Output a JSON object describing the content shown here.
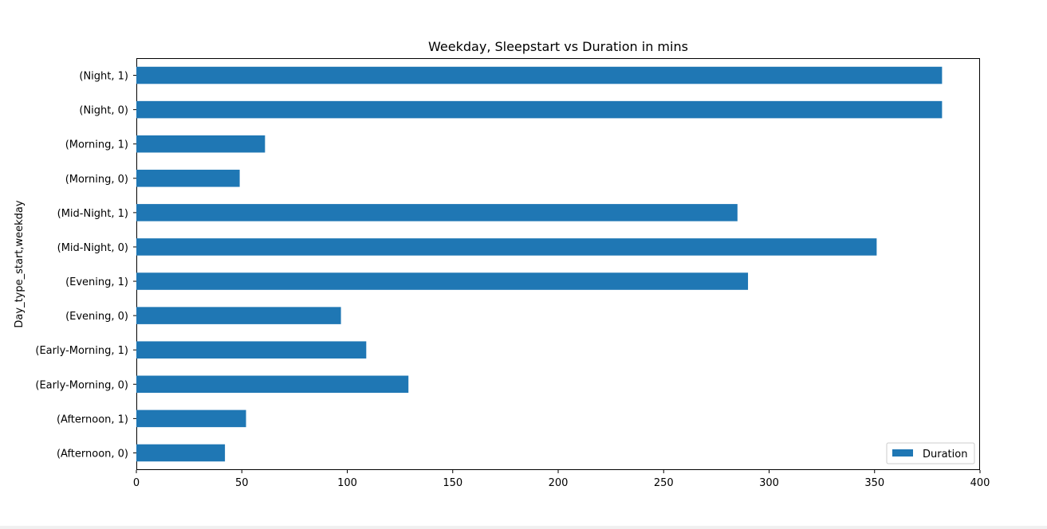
{
  "chart_data": {
    "type": "bar",
    "orientation": "horizontal",
    "title": "Weekday, Sleepstart vs Duration in mins",
    "xlabel": "",
    "ylabel": "Day_type_start,weekday",
    "xlim": [
      0,
      400
    ],
    "xticks": [
      "0",
      "50",
      "100",
      "150",
      "200",
      "250",
      "300",
      "350",
      "400"
    ],
    "categories": [
      "(Afternoon, 0)",
      "(Afternoon, 1)",
      "(Early-Morning, 0)",
      "(Early-Morning, 1)",
      "(Evening, 0)",
      "(Evening, 1)",
      "(Mid-Night, 0)",
      "(Mid-Night, 1)",
      "(Morning, 0)",
      "(Morning, 1)",
      "(Night, 0)",
      "(Night, 1)"
    ],
    "series": [
      {
        "name": "Duration",
        "color": "#1f77b4",
        "values": [
          42,
          52,
          129,
          109,
          97,
          290,
          351,
          285,
          49,
          61,
          382,
          382
        ]
      }
    ],
    "grid": false,
    "legend_position": "lower-right"
  }
}
